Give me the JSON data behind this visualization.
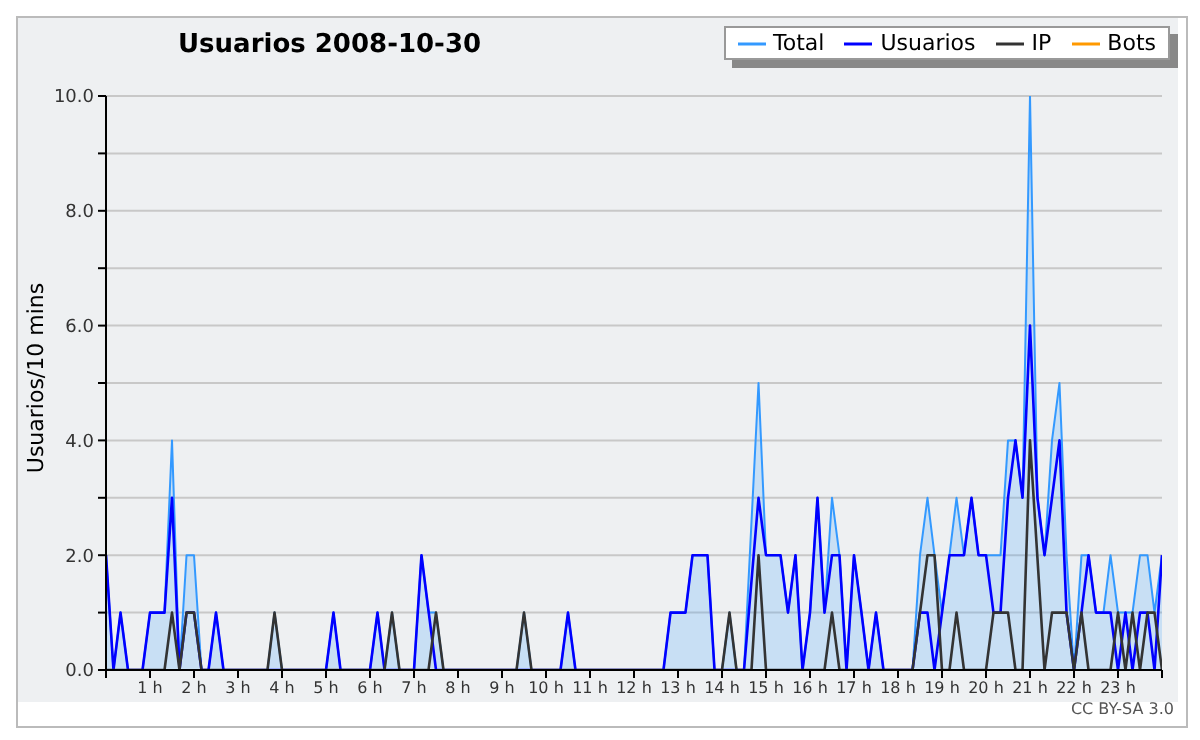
{
  "chart_data": {
    "type": "line",
    "title": "Usuarios  2008-10-30",
    "ylabel": "Usuarios/10 mins",
    "annotations": [
      "CC BY-SA 3.0"
    ],
    "xlim": [
      0,
      24
    ],
    "xticks": [
      {
        "value": 0,
        "label": null
      },
      {
        "value": 1,
        "label": "1 h"
      },
      {
        "value": 2,
        "label": "2 h"
      },
      {
        "value": 3,
        "label": "3 h"
      },
      {
        "value": 4,
        "label": "4 h"
      },
      {
        "value": 5,
        "label": "5 h"
      },
      {
        "value": 6,
        "label": "6 h"
      },
      {
        "value": 7,
        "label": "7 h"
      },
      {
        "value": 8,
        "label": "8 h"
      },
      {
        "value": 9,
        "label": "9 h"
      },
      {
        "value": 10,
        "label": "10 h"
      },
      {
        "value": 11,
        "label": "11 h"
      },
      {
        "value": 12,
        "label": "12 h"
      },
      {
        "value": 13,
        "label": "13 h"
      },
      {
        "value": 14,
        "label": "14 h"
      },
      {
        "value": 15,
        "label": "15 h"
      },
      {
        "value": 16,
        "label": "16 h"
      },
      {
        "value": 17,
        "label": "17 h"
      },
      {
        "value": 18,
        "label": "18 h"
      },
      {
        "value": 19,
        "label": "19 h"
      },
      {
        "value": 20,
        "label": "20 h"
      },
      {
        "value": 21,
        "label": "21 h"
      },
      {
        "value": 22,
        "label": "22 h"
      },
      {
        "value": 23,
        "label": "23 h"
      },
      {
        "value": 24,
        "label": null
      }
    ],
    "ylim": [
      0,
      10
    ],
    "yticks": [
      {
        "value": 0,
        "label": "0.0"
      },
      {
        "value": 1,
        "label": null
      },
      {
        "value": 2,
        "label": "2.0"
      },
      {
        "value": 3,
        "label": null
      },
      {
        "value": 4,
        "label": "4.0"
      },
      {
        "value": 5,
        "label": null
      },
      {
        "value": 6,
        "label": "6.0"
      },
      {
        "value": 7,
        "label": null
      },
      {
        "value": 8,
        "label": "8.0"
      },
      {
        "value": 9,
        "label": null
      },
      {
        "value": 10,
        "label": "10.0"
      }
    ],
    "grid": "y",
    "legend": "top right",
    "marker": "none",
    "line_style": "solid",
    "series": [
      {
        "name": "Total",
        "type": "area",
        "color": "#3399ff",
        "x": [
          0,
          0.17,
          0.33,
          0.5,
          0.83,
          1,
          1.33,
          1.5,
          1.67,
          1.83,
          2,
          2.17,
          2.33,
          2.5,
          2.67,
          3.67,
          3.83,
          4,
          5,
          5.17,
          5.33,
          6,
          6.17,
          6.33,
          6.5,
          6.67,
          7,
          7.17,
          7.33,
          7.5,
          7.67,
          9.33,
          9.5,
          9.67,
          10.33,
          10.5,
          10.67,
          12.67,
          12.83,
          13.17,
          13.33,
          13.67,
          13.83,
          14,
          14.17,
          14.33,
          14.5,
          14.83,
          15,
          15.33,
          15.5,
          15.67,
          15.83,
          16,
          16.17,
          16.33,
          16.5,
          16.67,
          16.83,
          17,
          17.17,
          17.33,
          17.5,
          17.67,
          18.33,
          18.5,
          18.67,
          18.83,
          19,
          19.17,
          19.33,
          19.5,
          19.67,
          19.83,
          20,
          20.17,
          20.33,
          20.5,
          20.67,
          20.83,
          21,
          21.17,
          21.33,
          21.5,
          21.67,
          21.83,
          22,
          22.17,
          22.33,
          22.5,
          22.67,
          22.83,
          23,
          23.17,
          23.33,
          23.5,
          23.67,
          23.83,
          24
        ],
        "values": [
          2,
          0,
          1,
          0,
          0,
          1,
          1,
          4,
          0,
          2,
          2,
          0,
          0,
          1,
          0,
          0,
          1,
          0,
          0,
          1,
          0,
          0,
          1,
          0,
          1,
          0,
          0,
          2,
          1,
          1,
          0,
          0,
          1,
          0,
          0,
          1,
          0,
          0,
          1,
          1,
          2,
          2,
          0,
          0,
          1,
          0,
          0,
          5,
          2,
          2,
          1,
          2,
          0,
          1,
          3,
          1,
          3,
          2,
          0,
          2,
          1,
          0,
          1,
          0,
          0,
          2,
          3,
          2,
          1,
          2,
          3,
          2,
          3,
          2,
          2,
          2,
          2,
          4,
          4,
          3,
          10,
          3,
          2,
          4,
          5,
          2,
          0,
          2,
          2,
          1,
          1,
          2,
          1,
          1,
          1,
          2,
          2,
          1,
          2
        ]
      },
      {
        "name": "Usuarios",
        "color": "#0000ff",
        "x": [
          0,
          0.17,
          0.33,
          0.5,
          0.83,
          1,
          1.33,
          1.5,
          1.67,
          1.83,
          2,
          2.17,
          2.33,
          2.5,
          2.67,
          5,
          5.17,
          5.33,
          6,
          6.17,
          6.33,
          7,
          7.17,
          7.5,
          10.33,
          10.5,
          10.67,
          12.67,
          12.83,
          13.17,
          13.33,
          13.67,
          13.83,
          14.5,
          14.83,
          15,
          15.33,
          15.5,
          15.67,
          15.83,
          16,
          16.17,
          16.33,
          16.5,
          16.67,
          16.83,
          17,
          17.17,
          17.33,
          17.5,
          17.67,
          18.33,
          18.5,
          18.67,
          18.83,
          19,
          19.17,
          19.5,
          19.67,
          19.83,
          20,
          20.17,
          20.33,
          20.5,
          20.67,
          20.83,
          21,
          21.17,
          21.33,
          21.5,
          21.67,
          21.83,
          22,
          22.17,
          22.33,
          22.5,
          22.83,
          23,
          23.17,
          23.33,
          23.5,
          23.67,
          23.83,
          24
        ],
        "values": [
          2,
          0,
          1,
          0,
          0,
          1,
          1,
          3,
          0,
          1,
          1,
          0,
          0,
          1,
          0,
          0,
          1,
          0,
          0,
          1,
          0,
          0,
          2,
          0,
          0,
          1,
          0,
          0,
          1,
          1,
          2,
          2,
          0,
          0,
          3,
          2,
          2,
          1,
          2,
          0,
          1,
          3,
          1,
          2,
          2,
          0,
          2,
          1,
          0,
          1,
          0,
          0,
          1,
          1,
          0,
          1,
          2,
          2,
          3,
          2,
          2,
          1,
          1,
          3,
          4,
          3,
          6,
          3,
          2,
          3,
          4,
          1,
          0,
          1,
          2,
          1,
          1,
          0,
          1,
          0,
          1,
          1,
          0,
          2
        ]
      },
      {
        "name": "IP",
        "color": "#333333",
        "x": [
          0,
          1.33,
          1.5,
          1.67,
          1.83,
          2,
          2.17,
          3.67,
          3.83,
          4,
          6.33,
          6.5,
          6.67,
          7.33,
          7.5,
          7.67,
          9.33,
          9.5,
          9.67,
          14,
          14.17,
          14.33,
          14.67,
          14.83,
          15,
          16.33,
          16.5,
          16.67,
          18.33,
          18.67,
          18.83,
          19,
          19.17,
          19.33,
          19.5,
          20,
          20.17,
          20.5,
          20.67,
          20.83,
          21,
          21.33,
          21.5,
          21.83,
          22,
          22.17,
          22.33,
          22.83,
          23,
          23.17,
          23.33,
          23.5,
          23.67,
          23.83,
          24
        ],
        "values": [
          0,
          0,
          1,
          0,
          1,
          1,
          0,
          0,
          1,
          0,
          0,
          1,
          0,
          0,
          1,
          0,
          0,
          1,
          0,
          0,
          1,
          0,
          0,
          2,
          0,
          0,
          1,
          0,
          0,
          2,
          2,
          0,
          0,
          1,
          0,
          0,
          1,
          1,
          0,
          0,
          4,
          0,
          1,
          1,
          0,
          1,
          0,
          0,
          1,
          0,
          1,
          0,
          1,
          1,
          0
        ]
      },
      {
        "name": "Bots",
        "color": "#ff9900"
      }
    ]
  }
}
